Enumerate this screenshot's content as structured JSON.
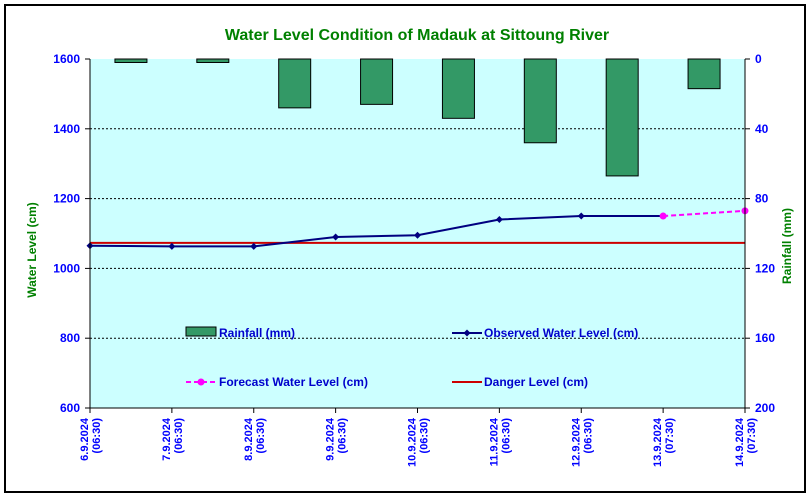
{
  "chart_data": {
    "type": "line",
    "title": "Water Level Condition of Madauk at Sittoung River",
    "ylabel": "Water Level (cm)",
    "y2label": "Rainfall (mm)",
    "ylim": [
      600,
      1600
    ],
    "y2lim": [
      0,
      200
    ],
    "y2_inverted": true,
    "yticks": [
      600,
      800,
      1000,
      1200,
      1400,
      1600
    ],
    "y2ticks": [
      0,
      40,
      80,
      120,
      160,
      200
    ],
    "categories": [
      [
        "6.9.2024",
        "(06:30)"
      ],
      [
        "7.9.2024",
        "(06:30)"
      ],
      [
        "8.9.2024",
        "(06:30)"
      ],
      [
        "9.9.2024",
        "(06:30)"
      ],
      [
        "10.9.2024",
        "(06:30)"
      ],
      [
        "11.9.2024",
        "(06:30)"
      ],
      [
        "12.9.2024",
        "(06:30)"
      ],
      [
        "13.9.2024",
        "(07:30)"
      ],
      [
        "14.9.2024",
        "(07:30)"
      ]
    ],
    "grid": true,
    "legend_position": "inside-lower",
    "series": [
      {
        "name": "Rainfall (mm)",
        "kind": "bar",
        "axis": "right",
        "color": "#339966",
        "values": [
          2,
          2,
          28,
          26,
          34,
          48,
          67,
          17,
          null
        ]
      },
      {
        "name": "Observed Water Level (cm)",
        "kind": "line",
        "axis": "left",
        "color": "#000080",
        "marker": "diamond",
        "values": [
          1065,
          1063,
          1063,
          1090,
          1095,
          1140,
          1150,
          1150,
          null
        ]
      },
      {
        "name": "Forecast Water Level (cm)",
        "kind": "line-dashed",
        "axis": "left",
        "color": "#ff00ff",
        "marker": "circle",
        "values": [
          null,
          null,
          null,
          null,
          null,
          null,
          null,
          1150,
          1165
        ]
      },
      {
        "name": "Danger Level (cm)",
        "kind": "hline",
        "axis": "left",
        "color": "#cc0000",
        "value": 1073
      }
    ],
    "colors": {
      "title": "#008000",
      "axis_labels": "#008000",
      "ticks": "#0000ff",
      "plot_background": "#ccffff"
    }
  }
}
